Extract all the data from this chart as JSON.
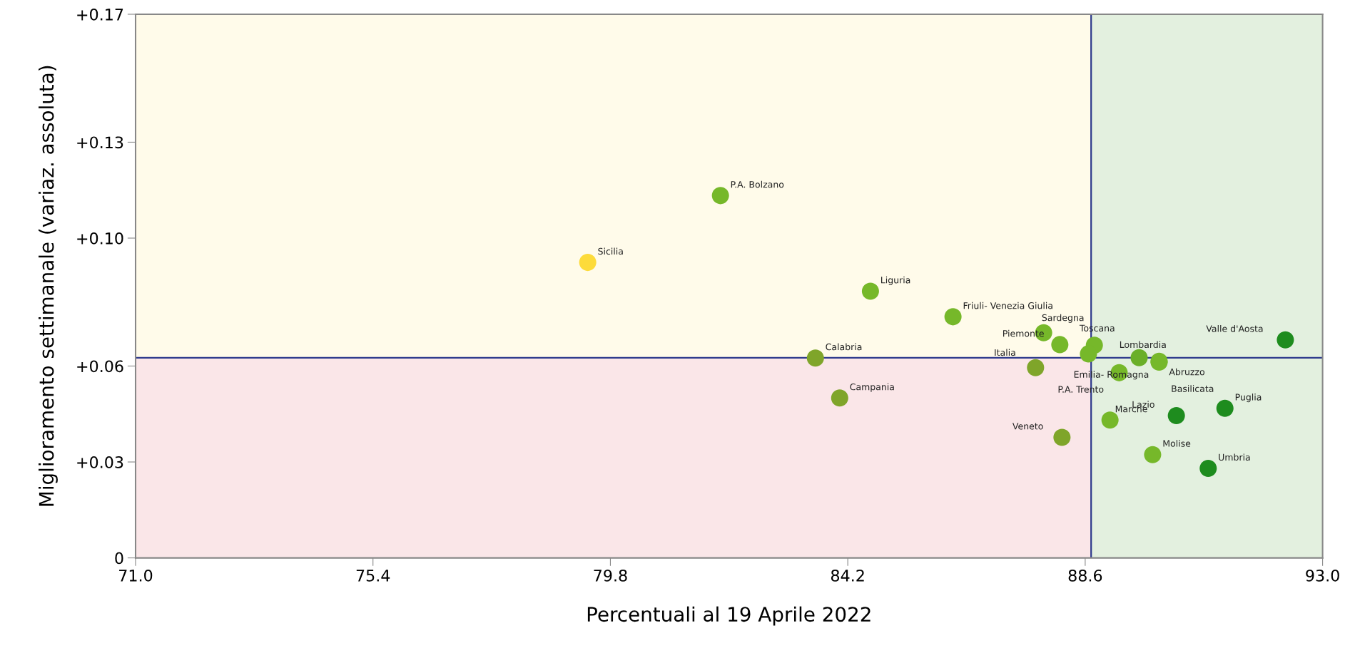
{
  "chart_data": {
    "type": "scatter",
    "xlabel": "Percentuali al 19 Aprile 2022",
    "ylabel": "Miglioramento settimanale (variaz. assoluta)",
    "xlim": [
      71,
      93
    ],
    "xticks": [
      {
        "value": 71,
        "label": "71.0"
      },
      {
        "value": 75.4,
        "label": "75.4"
      },
      {
        "value": 79.8,
        "label": "79.8"
      },
      {
        "value": 84.2,
        "label": "84.2"
      },
      {
        "value": 88.6,
        "label": "88.6"
      },
      {
        "value": 93,
        "label": "93.0"
      }
    ],
    "ylim": [
      0,
      0.17
    ],
    "yticks": [
      {
        "value": 0,
        "label": "0"
      },
      {
        "value": 0.03,
        "label": "+0.03"
      },
      {
        "value": 0.06,
        "label": "+0.06"
      },
      {
        "value": 0.1,
        "label": "+0.10"
      },
      {
        "value": 0.13,
        "label": "+0.13"
      },
      {
        "value": 0.17,
        "label": "+0.17"
      }
    ],
    "grid": false,
    "legend": false,
    "marker": "circle",
    "bands": [
      {
        "axis": "y",
        "from": 0.0626,
        "to": 0.17,
        "color": "#fffbea"
      },
      {
        "axis": "y",
        "from": 0,
        "to": 0.0626,
        "color": "#fae6e8"
      },
      {
        "axis": "x",
        "from": 88.71,
        "to": 93,
        "color": "#e3f0df"
      }
    ],
    "ref_lines": [
      {
        "axis": "x",
        "value": 88.71,
        "color": "#2e3a8c"
      },
      {
        "axis": "y",
        "value": 0.0626,
        "color": "#2e3a8c"
      }
    ],
    "series": [
      {
        "x": [
          79.38,
          81.84,
          84.62,
          86.15,
          83.6,
          84.05,
          87.83,
          88.13,
          88.77,
          88.66,
          87.68,
          89.23,
          89.6,
          89.97,
          89.97,
          92.31,
          89.06,
          90.29,
          91.19,
          88.17,
          89.85,
          90.88
        ],
        "values": [
          0.0924,
          0.1133,
          0.0834,
          0.0754,
          0.0625,
          0.05,
          0.0704,
          0.0667,
          0.0665,
          0.0638,
          0.0595,
          0.0579,
          0.0626,
          0.0615,
          0.0612,
          0.0682,
          0.0431,
          0.0445,
          0.0468,
          0.0377,
          0.0323,
          0.028
        ],
        "colors": [
          "#fddb3a",
          "#76b82a",
          "#76b82a",
          "#76b82a",
          "#7fa52a",
          "#7fa52a",
          "#76b82a",
          "#76b82a",
          "#76b82a",
          "#76b82a",
          "#7fa52a",
          "#76b82a",
          "#6aaf28",
          "#76b82a",
          "#76b82a",
          "#1e8c1e",
          "#76b82a",
          "#1e8c1e",
          "#1e8c1e",
          "#7fa52a",
          "#76b82a",
          "#1e8c1e"
        ],
        "value_labels": [
          "Sicilia",
          "P.A. Bolzano",
          "Liguria",
          "Friuli- Venezia Giulia",
          "Calabria",
          "Campania",
          "Sardegna",
          "Piemonte",
          "Toscana",
          "Emilia- Romagna",
          "Italia",
          "P.A. Trento",
          "Lombardia",
          "Abruzzo",
          "Basilicata",
          "Valle d'Aosta",
          "Marche",
          "Lazio",
          "Puglia",
          "Veneto",
          "Molise",
          "Umbria"
        ]
      }
    ]
  }
}
